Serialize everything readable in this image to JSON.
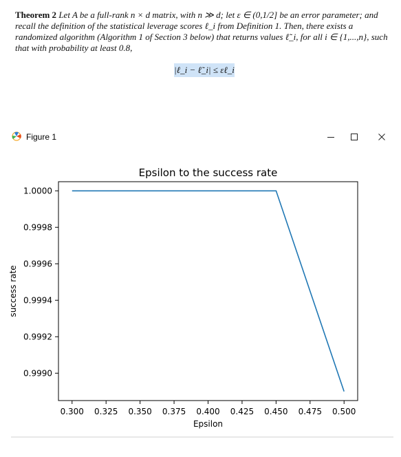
{
  "paper": {
    "theorem_label": "Theorem 2",
    "theorem_text": "Let A be a full-rank n × d matrix, with n ≫ d; let ε ∈ (0,1/2] be an error parameter; and recall the definition of the statistical leverage scores ℓ_i from Definition 1. Then, there exists a randomized algorithm (Algorithm 1 of Section 3 below) that returns values ℓ̃_i, for all i ∈ {1,...,n}, such that with probability at least 0.8,",
    "formula": "|ℓ_i − ℓ̃_i| ≤ εℓ_i"
  },
  "window": {
    "title": "Figure 1",
    "icon": "matplotlib-icon",
    "minimize_symbol": "—",
    "maximize_symbol": "☐",
    "close_symbol": "✕"
  },
  "chart_data": {
    "type": "line",
    "title": "Epsilon to the success rate",
    "xlabel": "Epsilon",
    "ylabel": "success rate",
    "x": [
      0.3,
      0.35,
      0.4,
      0.45,
      0.5
    ],
    "series": [
      {
        "values": [
          1.0,
          1.0,
          1.0,
          1.0,
          0.9989
        ],
        "color": "#1f77b4"
      }
    ],
    "xticks": [
      "0.300",
      "0.325",
      "0.350",
      "0.375",
      "0.400",
      "0.425",
      "0.450",
      "0.475",
      "0.500"
    ],
    "yticks": [
      "0.9990",
      "0.9992",
      "0.9994",
      "0.9996",
      "0.9998",
      "1.0000"
    ],
    "xlim": [
      0.29,
      0.51
    ],
    "ylim": [
      0.99885,
      1.00005
    ],
    "grid": false
  }
}
